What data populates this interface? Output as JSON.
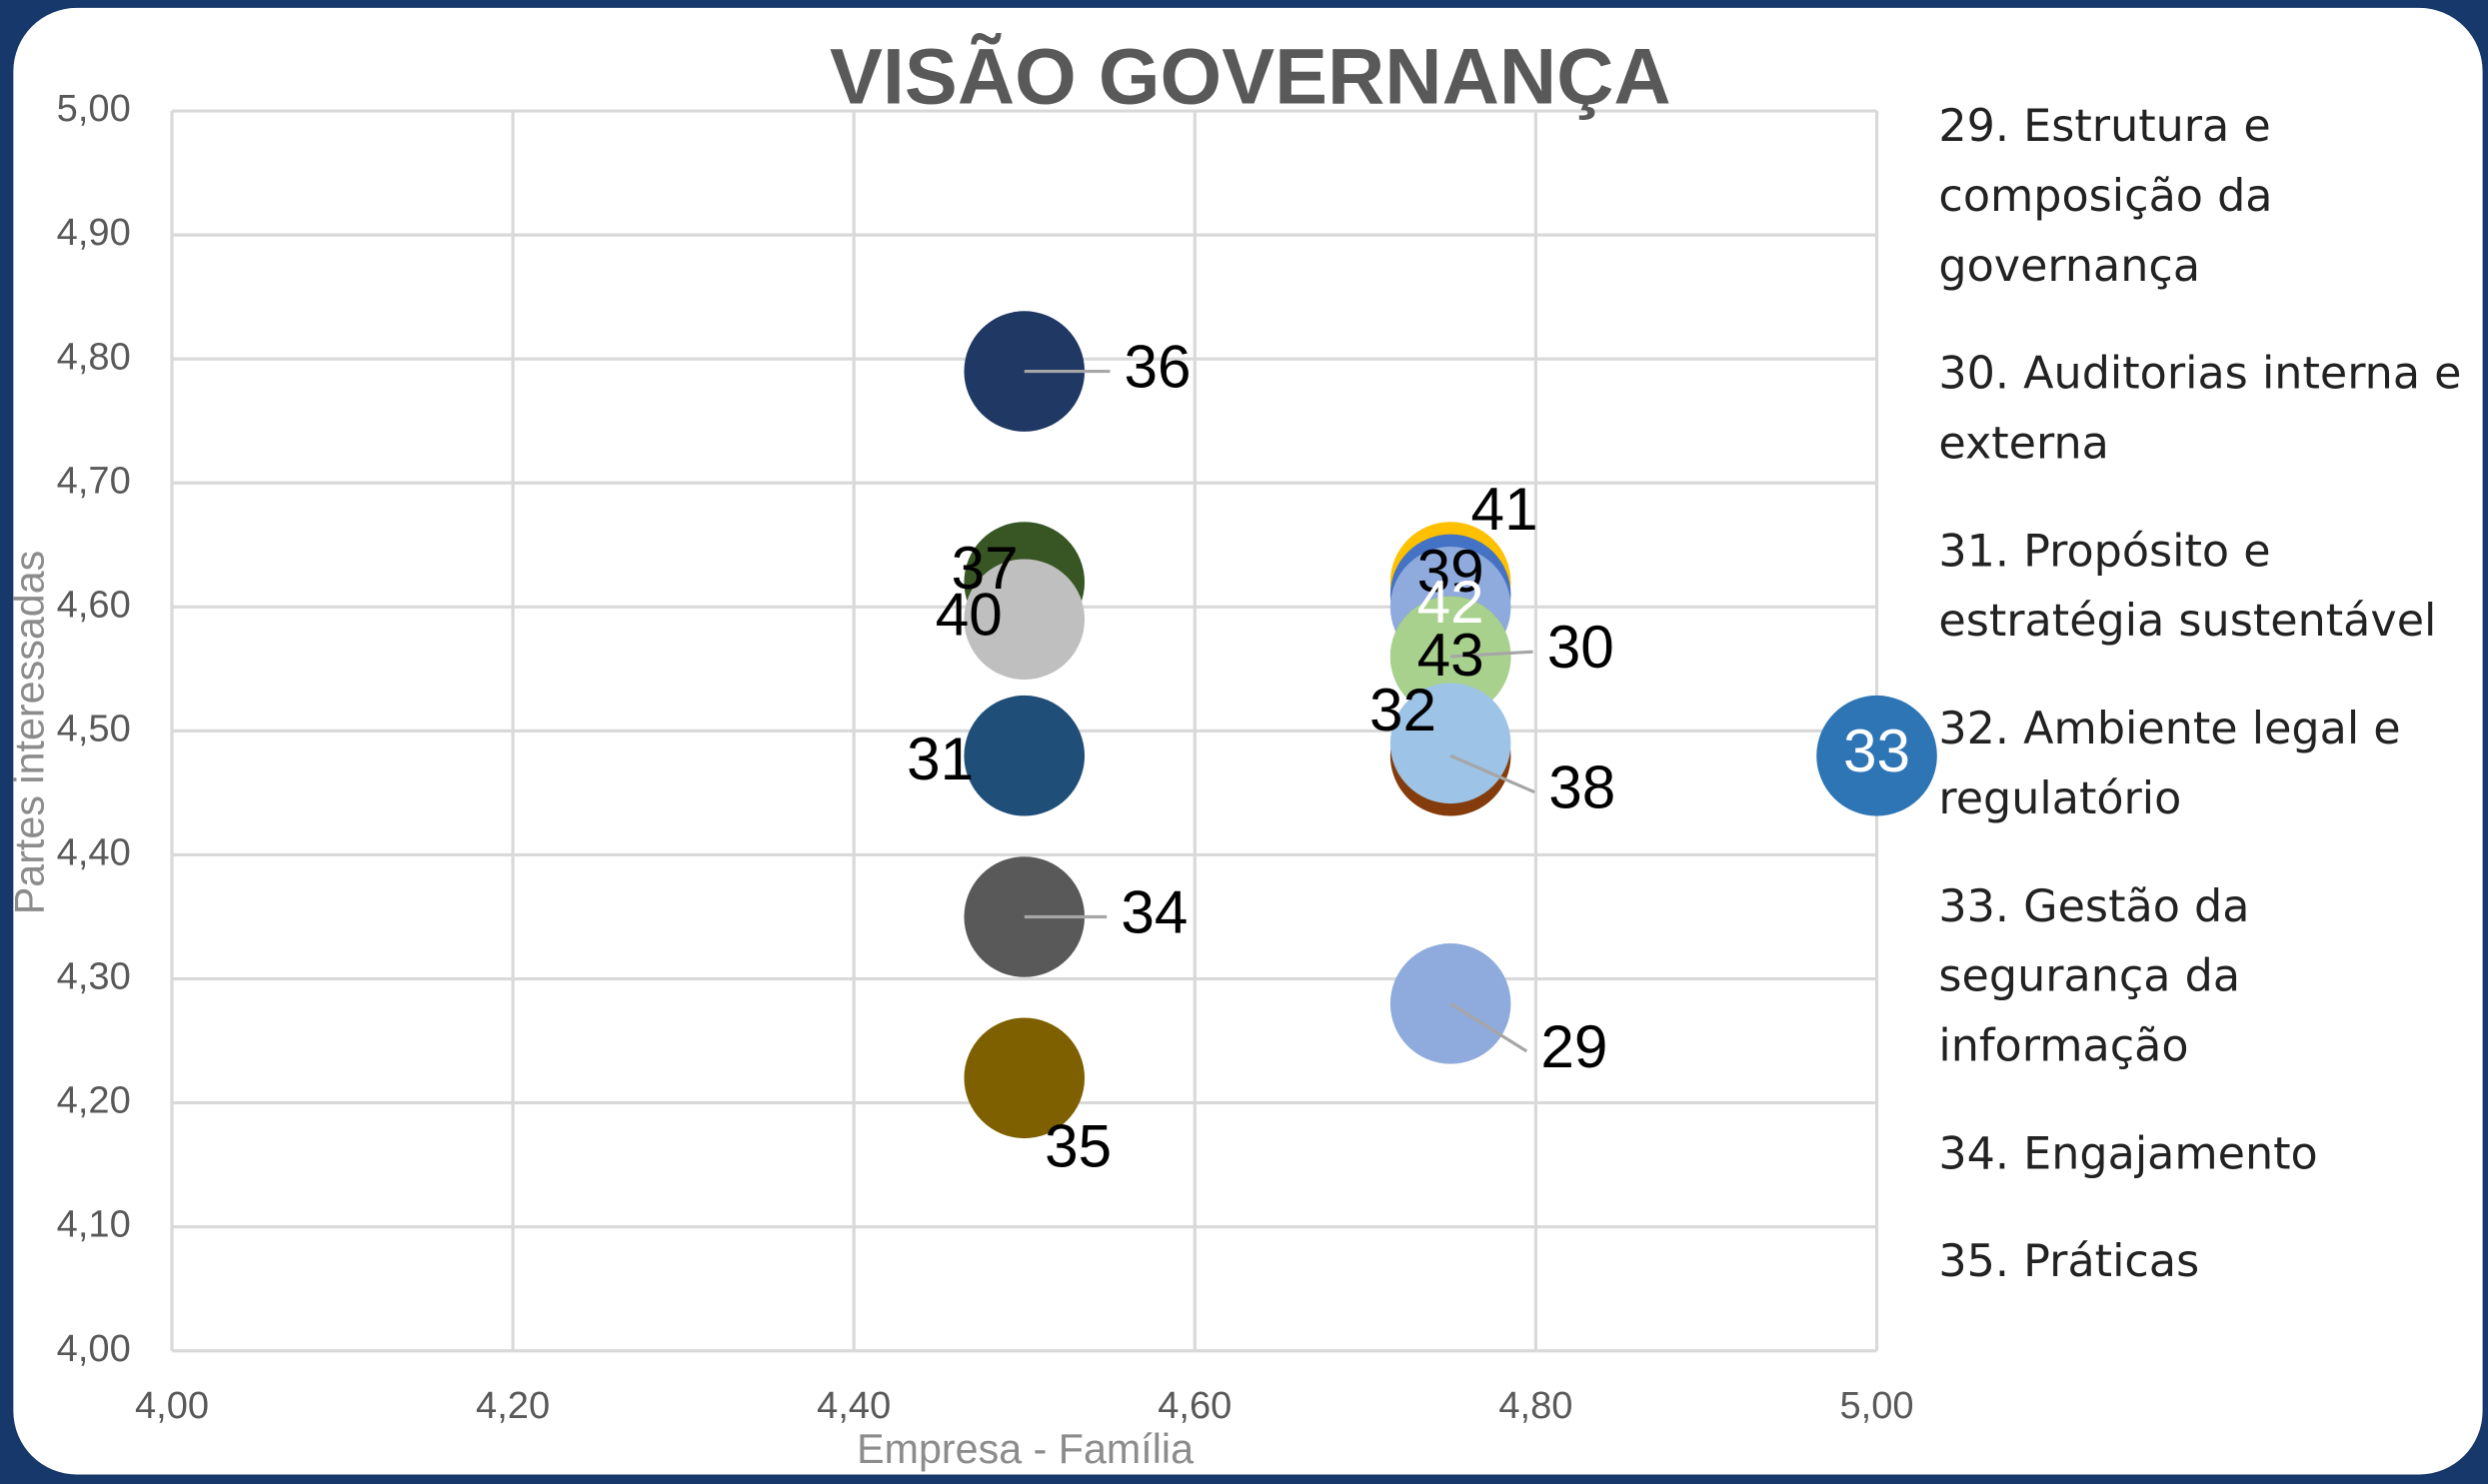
{
  "chart_data": {
    "type": "scatter",
    "title": "VISÃO GOVERNANÇA",
    "x_label": "Empresa - Família",
    "y_label": "Partes interessadas",
    "xlim": [
      4,
      5
    ],
    "ylim": [
      4,
      5
    ],
    "xticks": [
      {
        "value": 4,
        "label": "4,00"
      },
      {
        "value": 4.2,
        "label": "4,20"
      },
      {
        "value": 4.4,
        "label": "4,40"
      },
      {
        "value": 4.6,
        "label": "4,60"
      },
      {
        "value": 4.8,
        "label": "4,80"
      },
      {
        "value": 5,
        "label": "5,00"
      }
    ],
    "yticks": [
      {
        "value": 4,
        "label": "4,00"
      },
      {
        "value": 4.1,
        "label": "4,10"
      },
      {
        "value": 4.2,
        "label": "4,20"
      },
      {
        "value": 4.3,
        "label": "4,30"
      },
      {
        "value": 4.4,
        "label": "4,40"
      },
      {
        "value": 4.5,
        "label": "4,50"
      },
      {
        "value": 4.6,
        "label": "4,60"
      },
      {
        "value": 4.7,
        "label": "4,70"
      },
      {
        "value": 4.8,
        "label": "4,80"
      },
      {
        "value": 4.9,
        "label": "4,90"
      },
      {
        "value": 5,
        "label": "5,00"
      }
    ],
    "grid": true,
    "points": [
      {
        "label": "36",
        "x": 4.5,
        "y": 4.79,
        "color": "#1f3864"
      },
      {
        "label": "37",
        "x": 4.5,
        "y": 4.62,
        "color": "#375623"
      },
      {
        "label": "40",
        "x": 4.5,
        "y": 4.59,
        "color": "#bfbfbf"
      },
      {
        "label": "31",
        "x": 4.5,
        "y": 4.48,
        "color": "#1f4e79"
      },
      {
        "label": "34",
        "x": 4.5,
        "y": 4.35,
        "color": "#595959"
      },
      {
        "label": "35",
        "x": 4.5,
        "y": 4.22,
        "color": "#7f6000"
      },
      {
        "label": "41",
        "x": 4.75,
        "y": 4.62,
        "color": "#ffc000"
      },
      {
        "label": "39",
        "x": 4.75,
        "y": 4.61,
        "color": "#4472c4"
      },
      {
        "label": "42",
        "x": 4.75,
        "y": 4.6,
        "color": "#8faadc"
      },
      {
        "label": "30",
        "x": 4.75,
        "y": 4.56,
        "color": "#70ad47"
      },
      {
        "label": "43",
        "x": 4.75,
        "y": 4.56,
        "color": "#a9d18e"
      },
      {
        "label": "38",
        "x": 4.75,
        "y": 4.48,
        "color": "#843c0c"
      },
      {
        "label": "32",
        "x": 4.75,
        "y": 4.49,
        "color": "#9dc3e6"
      },
      {
        "label": "29",
        "x": 4.75,
        "y": 4.28,
        "color": "#8faadc"
      },
      {
        "label": "33",
        "x": 5,
        "y": 4.48,
        "color": "#2e75b6"
      }
    ],
    "side_list": [
      "29. Estrutura e composição da governança",
      "30. Auditorias interna e externa",
      "31. Propósito e estratégia sustentável",
      "32. Ambiente legal e regulatório",
      "33. Gestão da segurança da informação",
      "34. Engajamento",
      "35. Práticas"
    ]
  }
}
